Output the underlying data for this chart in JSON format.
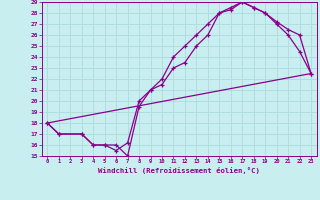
{
  "xlabel": "Windchill (Refroidissement éolien,°C)",
  "xlim": [
    -0.5,
    23.5
  ],
  "ylim": [
    15,
    29
  ],
  "xticks": [
    0,
    1,
    2,
    3,
    4,
    5,
    6,
    7,
    8,
    9,
    10,
    11,
    12,
    13,
    14,
    15,
    16,
    17,
    18,
    19,
    20,
    21,
    22,
    23
  ],
  "yticks": [
    15,
    16,
    17,
    18,
    19,
    20,
    21,
    22,
    23,
    24,
    25,
    26,
    27,
    28,
    29
  ],
  "bg_color": "#c8eef0",
  "line_color": "#8b008b",
  "grid_color": "#b0dde0",
  "line1_x": [
    0,
    1,
    3,
    4,
    5,
    6,
    7,
    8,
    9,
    10,
    11,
    12,
    13,
    14,
    15,
    16,
    17,
    18,
    19,
    20,
    21,
    22,
    23
  ],
  "line1_y": [
    18,
    17,
    17,
    16,
    16,
    15.5,
    16.2,
    20,
    21,
    22,
    24,
    25,
    26,
    27,
    28,
    28.3,
    29,
    28.5,
    28,
    27.2,
    26.5,
    26,
    22.5
  ],
  "line2_x": [
    0,
    1,
    3,
    4,
    5,
    6,
    7,
    8,
    9,
    10,
    11,
    12,
    13,
    14,
    15,
    16,
    17,
    18,
    19,
    20,
    21,
    22,
    23
  ],
  "line2_y": [
    18,
    17,
    17,
    16,
    16,
    16,
    15,
    19.5,
    21,
    21.5,
    23,
    23.5,
    25,
    26,
    28,
    28.5,
    29,
    28.5,
    28,
    27,
    26,
    24.5,
    22.5
  ],
  "line3_x": [
    0,
    23
  ],
  "line3_y": [
    18,
    22.5
  ]
}
